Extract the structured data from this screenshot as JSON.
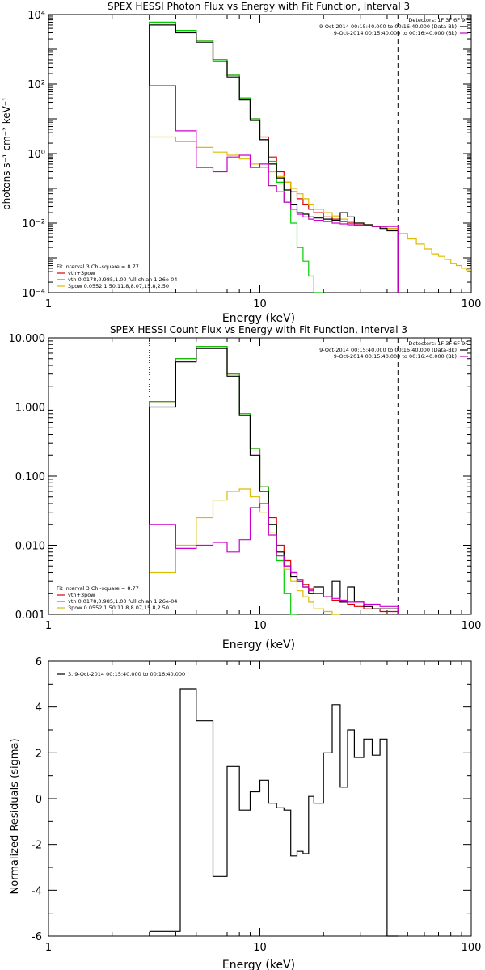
{
  "figure": {
    "panels": [
      {
        "id": "photon",
        "title": "SPEX HESSI Photon Flux vs Energy with Fit Function, Interval 3",
        "ylabel": "photons s⁻¹ cm⁻² keV⁻¹",
        "xlabel": "Energy (keV)",
        "xlim": [
          1,
          100
        ],
        "ylim": [
          0.0001,
          10000
        ],
        "yscale": "log",
        "xscale": "log",
        "xticks": [
          "1",
          "10",
          "100"
        ],
        "yticks": [
          "10⁻⁴",
          "10⁻²",
          "10⁰",
          "10²",
          "10⁴"
        ],
        "legend_tr": {
          "header": "Detectors: 1F 3F 6F 9F",
          "entries": [
            {
              "label": "9-Oct-2014 00:15:40.000 to 00:16:40.000 (Data-Bk)",
              "color": "#000000"
            },
            {
              "label": "9-Oct-2014 00:15:40.000 to 00:16:40.000 (Bk)",
              "color": "#cc00cc"
            }
          ]
        },
        "legend_bl": {
          "header": "Fit Interval 3   Chi-square = 8.77",
          "entries": [
            {
              "label": "vth+3pow",
              "color": "#dd0000"
            },
            {
              "label": "vth 0.0178,0.985,1.00  full chian 1.26e-04",
              "color": "#00cc00"
            },
            {
              "label": "3pow 0.0552,1.50,11.8,8.07,15.8,2.50",
              "color": "#ddbb00"
            }
          ]
        },
        "vlines": [
          {
            "x": 3,
            "style": "dotted"
          },
          {
            "x": 45,
            "style": "dashed"
          }
        ]
      },
      {
        "id": "count",
        "title": "SPEX HESSI Count Flux vs Energy with Fit Function, Interval 3",
        "ylabel": "",
        "xlabel": "Energy (keV)",
        "xlim": [
          1,
          100
        ],
        "ylim": [
          0.001,
          10
        ],
        "yscale": "log",
        "xscale": "log",
        "xticks": [
          "1",
          "10",
          "100"
        ],
        "yticks": [
          "0.001",
          "0.010",
          "0.100",
          "1.000",
          "10.000"
        ],
        "legend_tr": {
          "header": "Detectors: 1F 3F 6F 9F",
          "entries": [
            {
              "label": "9-Oct-2014 00:15:40.000 to 00:16:40.000 (Data-Bk)",
              "color": "#000000"
            },
            {
              "label": "9-Oct-2014 00:15:40.000 to 00:16:40.000 (Bk)",
              "color": "#cc00cc"
            }
          ]
        },
        "legend_bl": {
          "header": "Fit Interval 3   Chi-square = 8.77",
          "entries": [
            {
              "label": "vth+3pow",
              "color": "#dd0000"
            },
            {
              "label": "vth 0.0178,0.985,1.00  full chian 1.26e-04",
              "color": "#00cc00"
            },
            {
              "label": "3pow 0.0552,1.50,11.8,8.07,15.8,2.50",
              "color": "#ddbb00"
            }
          ]
        },
        "vlines": [
          {
            "x": 3,
            "style": "dotted"
          },
          {
            "x": 45,
            "style": "dashed"
          }
        ]
      },
      {
        "id": "resid",
        "title": "",
        "ylabel": "Normalized Residuals (sigma)",
        "xlabel": "Energy (keV)",
        "xlim": [
          1,
          100
        ],
        "ylim": [
          -6,
          6
        ],
        "yscale": "linear",
        "xscale": "log",
        "xticks": [
          "1",
          "10",
          "100"
        ],
        "yticks": [
          "-6",
          "-4",
          "-2",
          "0",
          "2",
          "4",
          "6"
        ],
        "legend_tl": {
          "entries": [
            {
              "label": "3.  9-Oct-2014 00:15:40.000 to 00:16:40.000",
              "color": "#000000"
            }
          ]
        },
        "vlines": []
      }
    ]
  },
  "chart_data": [
    {
      "type": "line",
      "title": "SPEX HESSI Photon Flux vs Energy with Fit Function, Interval 3",
      "xlabel": "Energy (keV)",
      "ylabel": "photons s⁻¹ cm⁻² keV⁻¹",
      "xlim": [
        1,
        100
      ],
      "ylim": [
        0.0001,
        10000
      ],
      "xscale": "log",
      "yscale": "log",
      "x": [
        3,
        4,
        5,
        6,
        7,
        8,
        9,
        10,
        11,
        12,
        13,
        14,
        15,
        16,
        17,
        18,
        20,
        22,
        24,
        26,
        28,
        31,
        34,
        37,
        40,
        45,
        50,
        55,
        60,
        65,
        70,
        75,
        80,
        85,
        90,
        95,
        100
      ],
      "series": [
        {
          "name": "vth+3pow",
          "color": "#dd0000",
          "values": [
            6000,
            3500,
            1800,
            500,
            180,
            40,
            10,
            3,
            0.8,
            0.3,
            0.15,
            0.08,
            0.05,
            0.035,
            0.025,
            0.02,
            0.015,
            0.013,
            0.011,
            0.01,
            0.009,
            0.0085,
            0.008,
            0.0075,
            0.007,
            null,
            null,
            null,
            null,
            null,
            null,
            null,
            null,
            null,
            null,
            null,
            null
          ]
        },
        {
          "name": "vth",
          "color": "#00cc00",
          "values": [
            6000,
            3500,
            1800,
            500,
            180,
            40,
            10,
            2.5,
            0.6,
            0.15,
            0.04,
            0.01,
            0.002,
            0.0008,
            0.0003,
            0.0001,
            null,
            null,
            null,
            null,
            null,
            null,
            null,
            null,
            null,
            null,
            null,
            null,
            null,
            null,
            null,
            null,
            null,
            null,
            null,
            null,
            null
          ]
        },
        {
          "name": "3pow",
          "color": "#ddbb00",
          "values": [
            3,
            2.2,
            1.5,
            1.1,
            0.9,
            0.7,
            0.5,
            0.4,
            0.3,
            0.22,
            0.15,
            0.1,
            0.07,
            0.05,
            0.035,
            0.025,
            0.02,
            0.016,
            0.013,
            0.011,
            0.01,
            0.009,
            0.008,
            0.0075,
            0.007,
            0.005,
            0.0035,
            0.0025,
            0.0018,
            0.0013,
            0.0011,
            0.0009,
            0.0007,
            0.0006,
            0.0005,
            0.00045,
            0.0004
          ]
        },
        {
          "name": "9-Oct-2014 00:15:40.000 to 00:16:40.000 (Data-Bk)",
          "color": "#000000",
          "values": [
            5000,
            3000,
            1600,
            450,
            160,
            35,
            9,
            2.5,
            0.5,
            0.2,
            0.09,
            0.035,
            0.02,
            0.018,
            0.015,
            0.014,
            0.013,
            0.012,
            0.02,
            0.015,
            0.01,
            0.009,
            0.008,
            0.007,
            0.006,
            null,
            null,
            null,
            null,
            null,
            null,
            null,
            null,
            null,
            null,
            null,
            null
          ]
        },
        {
          "name": "9-Oct-2014 00:15:40.000 to 00:16:40.000 (Bk)",
          "color": "#cc00cc",
          "values": [
            90,
            4.5,
            0.4,
            0.3,
            0.8,
            0.9,
            0.4,
            0.5,
            0.12,
            0.08,
            0.04,
            0.025,
            0.018,
            0.015,
            0.013,
            0.012,
            0.011,
            0.01,
            0.0095,
            0.009,
            0.0088,
            0.0085,
            0.008,
            0.008,
            0.008,
            null,
            null,
            null,
            null,
            null,
            null,
            null,
            null,
            null,
            null,
            null,
            null
          ]
        }
      ]
    },
    {
      "type": "line",
      "title": "SPEX HESSI Count Flux vs Energy with Fit Function, Interval 3",
      "xlabel": "Energy (keV)",
      "ylabel": "",
      "xlim": [
        1,
        100
      ],
      "ylim": [
        0.001,
        10
      ],
      "xscale": "log",
      "yscale": "log",
      "x": [
        3,
        4,
        5,
        6,
        7,
        8,
        9,
        10,
        11,
        12,
        13,
        14,
        15,
        16,
        17,
        18,
        20,
        22,
        24,
        26,
        28,
        31,
        34,
        37,
        40,
        45
      ],
      "series": [
        {
          "name": "vth+3pow",
          "color": "#dd0000",
          "values": [
            1.2,
            5,
            7.5,
            7.5,
            3,
            0.8,
            0.25,
            0.07,
            0.025,
            0.01,
            0.006,
            0.004,
            0.0032,
            0.0027,
            0.0023,
            0.002,
            0.0018,
            0.0016,
            0.0015,
            0.0014,
            0.0013,
            0.0012,
            0.0012,
            0.0011,
            0.0011,
            null
          ]
        },
        {
          "name": "vth",
          "color": "#00cc00",
          "values": [
            1.2,
            5,
            7.5,
            7.5,
            3,
            0.8,
            0.25,
            0.07,
            0.02,
            0.006,
            0.002,
            0.001,
            null,
            null,
            null,
            null,
            null,
            null,
            null,
            null,
            null,
            null,
            null,
            null,
            null,
            null
          ]
        },
        {
          "name": "3pow",
          "color": "#ddbb00",
          "values": [
            0.004,
            0.01,
            0.025,
            0.045,
            0.06,
            0.065,
            0.05,
            0.03,
            0.015,
            0.008,
            0.0045,
            0.003,
            0.0022,
            0.0018,
            0.0015,
            0.0012,
            0.0011,
            0.001,
            null,
            null,
            null,
            null,
            null,
            null,
            null,
            null
          ]
        },
        {
          "name": "9-Oct-2014 00:15:40.000 to 00:16:40.000 (Data-Bk)",
          "color": "#000000",
          "values": [
            1.0,
            4.5,
            7.0,
            7.0,
            2.8,
            0.75,
            0.2,
            0.06,
            0.02,
            0.008,
            0.005,
            0.0035,
            0.003,
            0.0025,
            0.002,
            0.0025,
            0.0018,
            0.003,
            0.0015,
            0.0025,
            0.0015,
            0.0013,
            0.0012,
            0.0012,
            0.0012,
            null
          ]
        },
        {
          "name": "9-Oct-2014 00:15:40.000 to 00:16:40.000 (Bk)",
          "color": "#cc00cc",
          "values": [
            0.02,
            0.009,
            0.01,
            0.011,
            0.008,
            0.012,
            0.035,
            0.04,
            0.014,
            0.007,
            0.005,
            0.004,
            0.003,
            0.0025,
            0.0022,
            0.002,
            0.0018,
            0.0017,
            0.0016,
            0.0015,
            0.0015,
            0.0014,
            0.0014,
            0.0013,
            0.0013,
            null
          ]
        }
      ]
    },
    {
      "type": "line",
      "title": "",
      "xlabel": "Energy (keV)",
      "ylabel": "Normalized Residuals (sigma)",
      "xlim": [
        1,
        100
      ],
      "ylim": [
        -6,
        6
      ],
      "xscale": "log",
      "yscale": "linear",
      "x": [
        3,
        4.2,
        5,
        6,
        7,
        8,
        9,
        10,
        11,
        12,
        13,
        14,
        15,
        16,
        17,
        18,
        20,
        22,
        24,
        26,
        28,
        31,
        34,
        37,
        40,
        45
      ],
      "series": [
        {
          "name": "3.  9-Oct-2014 00:15:40.000 to 00:16:40.000",
          "color": "#000000",
          "values": [
            -5.8,
            4.8,
            3.4,
            -3.4,
            1.4,
            -0.5,
            0.3,
            0.8,
            -0.2,
            -0.4,
            -0.5,
            -2.5,
            -2.3,
            -2.4,
            0.1,
            -0.2,
            2.0,
            4.1,
            0.5,
            3.0,
            1.8,
            2.6,
            1.9,
            2.6,
            -6,
            null
          ]
        }
      ]
    }
  ]
}
